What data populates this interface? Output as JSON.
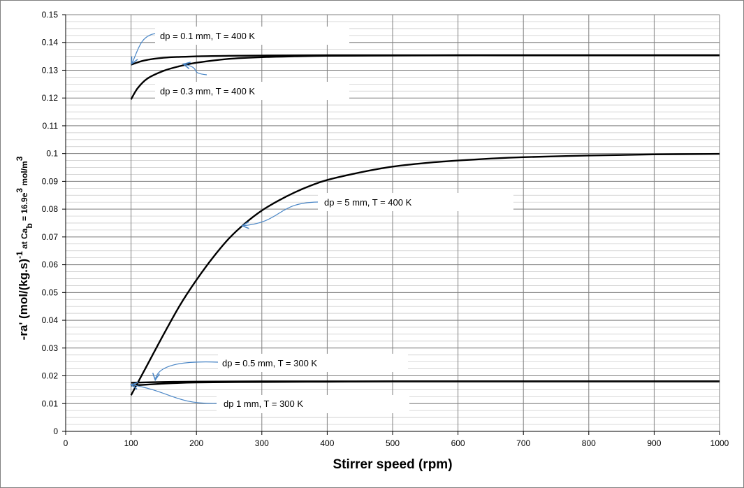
{
  "chart_data": {
    "type": "line",
    "title": "",
    "xlabel": "Stirrer speed (rpm)",
    "ylabel": {
      "main": "-ra' (mol/(kg.s)",
      "exp": "-1",
      "at": " at Ca",
      "sub": "b",
      "eq": " = 16.9e",
      "sup": "3",
      "unit": " mol/m",
      "unit_sup": "3"
    },
    "xlim": [
      0,
      1000
    ],
    "ylim": [
      0,
      0.15
    ],
    "xticks": [
      "0",
      "100",
      "200",
      "300",
      "400",
      "500",
      "600",
      "700",
      "800",
      "900",
      "1000"
    ],
    "yticks": [
      "0",
      "0.01",
      "0.02",
      "0.03",
      "0.04",
      "0.05",
      "0.06",
      "0.07",
      "0.08",
      "0.09",
      "0.1",
      "0.11",
      "0.12",
      "0.13",
      "0.14",
      "0.15"
    ],
    "grid": true,
    "series": [
      {
        "name": "dp = 0.1 mm, T = 400 K",
        "x": [
          100,
          120,
          150,
          200,
          250,
          300,
          400,
          500,
          600,
          700,
          800,
          900,
          1000
        ],
        "y": [
          0.132,
          0.1335,
          0.1345,
          0.135,
          0.1352,
          0.1353,
          0.1354,
          0.1354,
          0.1354,
          0.1354,
          0.1354,
          0.1354,
          0.1354
        ]
      },
      {
        "name": "dp = 0.3 mm, T = 400 K",
        "x": [
          100,
          110,
          125,
          150,
          175,
          200,
          250,
          300,
          350,
          400,
          500,
          600,
          700,
          800,
          900,
          1000
        ],
        "y": [
          0.1195,
          0.1235,
          0.127,
          0.1298,
          0.1315,
          0.1327,
          0.1341,
          0.1347,
          0.135,
          0.1352,
          0.1353,
          0.1354,
          0.1354,
          0.1354,
          0.1354,
          0.1354
        ]
      },
      {
        "name": "dp = 5 mm, T = 400 K",
        "x": [
          100,
          125,
          150,
          175,
          200,
          225,
          250,
          275,
          300,
          325,
          350,
          375,
          400,
          450,
          500,
          550,
          600,
          650,
          700,
          800,
          900,
          1000
        ],
        "y": [
          0.013,
          0.024,
          0.035,
          0.0455,
          0.0545,
          0.0625,
          0.0695,
          0.075,
          0.0795,
          0.083,
          0.086,
          0.0885,
          0.0905,
          0.0932,
          0.0953,
          0.0966,
          0.0975,
          0.0982,
          0.0987,
          0.0993,
          0.0997,
          0.0999
        ]
      },
      {
        "name": "dp = 0.5 mm, T = 300 K",
        "x": [
          100,
          150,
          200,
          300,
          400,
          500,
          600,
          700,
          800,
          900,
          1000
        ],
        "y": [
          0.0175,
          0.0178,
          0.0179,
          0.018,
          0.018,
          0.018,
          0.018,
          0.018,
          0.018,
          0.018,
          0.018
        ]
      },
      {
        "name": "dp 1 mm, T = 300 K",
        "x": [
          100,
          150,
          200,
          300,
          400,
          500,
          600,
          700,
          800,
          900,
          1000
        ],
        "y": [
          0.0165,
          0.0172,
          0.0176,
          0.0178,
          0.0179,
          0.018,
          0.018,
          0.018,
          0.018,
          0.018,
          0.018
        ]
      }
    ],
    "annotations": [
      {
        "text": "dp = 0.1 mm, T = 400 K",
        "points_to": [
          101,
          0.1323
        ]
      },
      {
        "text": "dp = 0.3 mm, T = 400 K",
        "points_to": [
          180,
          0.1322
        ]
      },
      {
        "text": "dp = 5 mm, T = 400 K",
        "points_to": [
          270,
          0.074
        ]
      },
      {
        "text": "dp = 0.5 mm, T = 300 K",
        "points_to": [
          137,
          0.0185
        ]
      },
      {
        "text": "dp 1 mm, T = 300 K",
        "points_to": [
          100,
          0.0168
        ]
      }
    ],
    "colors": {
      "line": "#000000",
      "arrow": "#4a86c6",
      "gridMajor": "#808080",
      "gridMinor": "#c8c8c8"
    }
  }
}
